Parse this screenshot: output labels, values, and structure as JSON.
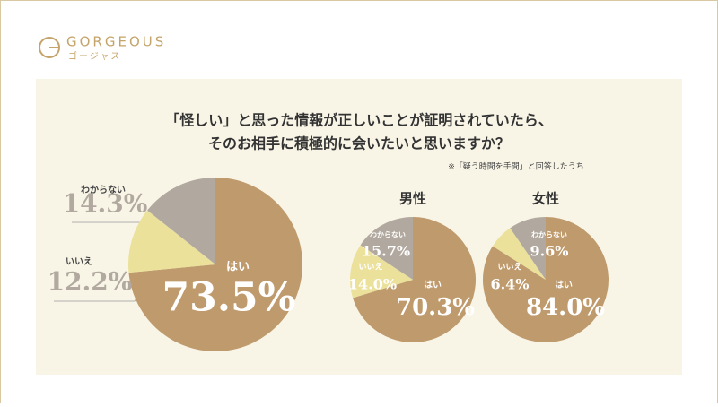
{
  "header": {
    "brand": "GORGEOUS",
    "brand_kana": "ゴージャス"
  },
  "title_lines": [
    "「怪しい」と思った情報が正しいことが証明されていたら、",
    "そのお相手に積極的に会いたいと思いますか？"
  ],
  "note": "※「疑う時間を手間」と回答したうち",
  "chart_data": [
    {
      "type": "pie",
      "categories": [
        "はい",
        "いいえ",
        "わからない"
      ],
      "values": [
        73.5,
        12.2,
        14.3
      ],
      "value_labels": [
        "73.5%",
        "12.2%",
        "14.3%"
      ],
      "colors": [
        "#bf9a6c",
        "#ebe19b",
        "#b1a99f"
      ]
    },
    {
      "type": "pie",
      "title": "男性",
      "categories": [
        "はい",
        "いいえ",
        "わからない"
      ],
      "values": [
        70.3,
        14.0,
        15.7
      ],
      "value_labels": [
        "70.3%",
        "14.0%",
        "15.7%"
      ],
      "colors": [
        "#bf9a6c",
        "#ebe19b",
        "#b1a99f"
      ]
    },
    {
      "type": "pie",
      "title": "女性",
      "categories": [
        "はい",
        "いいえ",
        "わからない"
      ],
      "values": [
        84.0,
        6.4,
        9.6
      ],
      "value_labels": [
        "84.0%",
        "6.4%",
        "9.6%"
      ],
      "colors": [
        "#bf9a6c",
        "#ebe19b",
        "#b1a99f"
      ]
    }
  ]
}
